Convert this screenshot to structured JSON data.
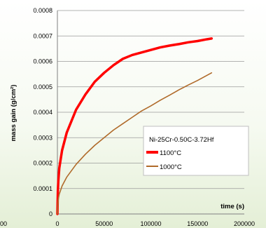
{
  "chart_data": {
    "type": "line",
    "title": "",
    "xlabel": "time (s)",
    "ylabel": "mass gain (g/cm²)",
    "xlim": [
      0,
      200000
    ],
    "ylim": [
      0,
      0.0008
    ],
    "x_ticks": [
      "0",
      "50000",
      "100000",
      "150000",
      "200000"
    ],
    "x_tick_values": [
      0,
      50000,
      100000,
      150000,
      200000
    ],
    "y_ticks": [
      "0",
      "0.0001",
      "0.0002",
      "0.0003",
      "0.0004",
      "0.0005",
      "0.0006",
      "0.0007",
      "0.0008"
    ],
    "y_tick_values": [
      0,
      0.0001,
      0.0002,
      0.0003,
      0.0004,
      0.0005,
      0.0006,
      0.0007,
      0.0008
    ],
    "partial_left_tick": "00",
    "grid": "horizontal",
    "legend": {
      "title": "Ni-25Cr-0.50C-3.72Hf",
      "placement": "lower-right"
    },
    "series": [
      {
        "name": "1100°C",
        "color": "#ff0000",
        "x": [
          0,
          500,
          1000,
          2000,
          5000,
          10000,
          20000,
          30000,
          40000,
          50000,
          60000,
          70000,
          80000,
          90000,
          100000,
          110000,
          120000,
          130000,
          140000,
          150000,
          160000,
          165000
        ],
        "y": [
          0,
          9e-05,
          0.00013,
          0.00018,
          0.00025,
          0.00032,
          0.00041,
          0.00047,
          0.00052,
          0.000555,
          0.000585,
          0.00061,
          0.000625,
          0.000635,
          0.000645,
          0.000655,
          0.000662,
          0.000668,
          0.000675,
          0.00068,
          0.000687,
          0.00069
        ]
      },
      {
        "name": "1000°C",
        "color": "#b06a2a",
        "x": [
          0,
          500,
          1000,
          2000,
          5000,
          10000,
          20000,
          30000,
          40000,
          50000,
          60000,
          70000,
          80000,
          90000,
          100000,
          110000,
          120000,
          130000,
          140000,
          150000,
          160000,
          165000
        ],
        "y": [
          0,
          4e-05,
          5.8e-05,
          7.8e-05,
          0.00011,
          0.000145,
          0.000195,
          0.000235,
          0.00027,
          0.0003,
          0.00033,
          0.000355,
          0.00038,
          0.000405,
          0.000425,
          0.000447,
          0.000467,
          0.000488,
          0.000507,
          0.000525,
          0.000545,
          0.000555
        ]
      }
    ]
  }
}
